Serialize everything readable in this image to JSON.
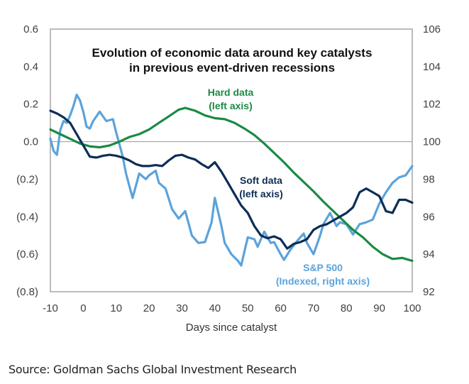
{
  "chart_data": {
    "type": "line",
    "title": "Evolution of economic data around key catalysts in previous event-driven recessions",
    "title_lines": [
      "Evolution of economic data around key catalysts",
      "in previous event-driven recessions"
    ],
    "xlabel": "Days since catalyst",
    "ylabel_left": "",
    "ylabel_right": "",
    "xlim": [
      -10,
      100
    ],
    "ylim_left": [
      -0.8,
      0.6
    ],
    "ylim_right": [
      92,
      106
    ],
    "x_ticks": [
      "-10",
      "0",
      "10",
      "20",
      "30",
      "40",
      "50",
      "60",
      "70",
      "80",
      "90",
      "100"
    ],
    "x_tick_values": [
      -10,
      0,
      10,
      20,
      30,
      40,
      50,
      60,
      70,
      80,
      90,
      100
    ],
    "left_ticks": [
      "0.6",
      "0.4",
      "0.2",
      "0.0",
      "(0.2)",
      "(0.4)",
      "(0.6)",
      "(0.8)"
    ],
    "left_tick_values": [
      0.6,
      0.4,
      0.2,
      0.0,
      -0.2,
      -0.4,
      -0.6,
      -0.8
    ],
    "right_ticks": [
      "106",
      "104",
      "102",
      "100",
      "98",
      "96",
      "94",
      "92"
    ],
    "right_tick_values": [
      106,
      104,
      102,
      100,
      98,
      96,
      94,
      92
    ],
    "grid": false,
    "zero_line": true,
    "series": [
      {
        "name": "Hard data",
        "axis": "left",
        "color": "#1a8a44",
        "label_lines": [
          "Hard data",
          "(left axis)"
        ],
        "x": [
          -10,
          -7,
          -4,
          -1,
          2,
          5,
          8,
          11,
          14,
          17,
          20,
          23,
          26,
          29,
          31,
          34,
          37,
          40,
          43,
          46,
          49,
          52,
          55,
          58,
          61,
          64,
          67,
          70,
          73,
          76,
          79,
          82,
          85,
          88,
          91,
          94,
          97,
          100
        ],
        "values": [
          0.065,
          0.04,
          0.015,
          -0.01,
          -0.025,
          -0.03,
          -0.02,
          0.0,
          0.025,
          0.04,
          0.065,
          0.1,
          0.135,
          0.17,
          0.18,
          0.165,
          0.14,
          0.125,
          0.12,
          0.1,
          0.07,
          0.035,
          -0.01,
          -0.06,
          -0.11,
          -0.165,
          -0.215,
          -0.265,
          -0.32,
          -0.37,
          -0.42,
          -0.47,
          -0.51,
          -0.56,
          -0.6,
          -0.625,
          -0.62,
          -0.635
        ]
      },
      {
        "name": "Soft data",
        "axis": "left",
        "color": "#0d2d55",
        "label_lines": [
          "Soft data",
          "(left axis)"
        ],
        "x": [
          -10,
          -8,
          -6,
          -4,
          -2,
          0,
          2,
          4,
          6,
          8,
          10,
          12,
          14,
          16,
          18,
          20,
          22,
          24,
          26,
          28,
          30,
          32,
          34,
          36,
          38,
          40,
          42,
          44,
          46,
          48,
          50,
          52,
          54,
          56,
          58,
          60,
          62,
          64,
          66,
          68,
          70,
          72,
          74,
          76,
          78,
          80,
          82,
          84,
          86,
          88,
          90,
          92,
          94,
          96,
          98,
          100
        ],
        "values": [
          0.165,
          0.15,
          0.13,
          0.1,
          0.04,
          -0.02,
          -0.08,
          -0.085,
          -0.075,
          -0.07,
          -0.075,
          -0.085,
          -0.1,
          -0.12,
          -0.13,
          -0.13,
          -0.125,
          -0.13,
          -0.1,
          -0.075,
          -0.07,
          -0.085,
          -0.095,
          -0.12,
          -0.14,
          -0.11,
          -0.16,
          -0.22,
          -0.28,
          -0.34,
          -0.38,
          -0.45,
          -0.5,
          -0.515,
          -0.505,
          -0.52,
          -0.57,
          -0.545,
          -0.535,
          -0.52,
          -0.47,
          -0.45,
          -0.44,
          -0.42,
          -0.4,
          -0.38,
          -0.35,
          -0.27,
          -0.25,
          -0.27,
          -0.29,
          -0.37,
          -0.38,
          -0.31,
          -0.31,
          -0.325
        ]
      },
      {
        "name": "S&P 500",
        "axis": "right",
        "color": "#5ba3dc",
        "label_lines": [
          "S&P 500",
          "(Indexed, right axis)"
        ],
        "x": [
          -10,
          -9,
          -8,
          -7,
          -6,
          -5,
          -4,
          -3,
          -2,
          -1,
          0,
          1,
          2,
          3,
          5,
          7,
          9,
          10,
          12,
          13,
          15,
          17,
          19,
          20,
          22,
          23,
          25,
          27,
          29,
          31,
          33,
          35,
          37,
          39,
          40,
          42,
          43,
          45,
          47,
          48,
          50,
          52,
          53,
          55,
          57,
          58,
          60,
          61,
          63,
          65,
          67,
          68,
          70,
          72,
          73,
          75,
          77,
          78,
          80,
          82,
          84,
          86,
          88,
          90,
          92,
          94,
          96,
          98,
          100
        ],
        "values": [
          100.15,
          99.5,
          99.3,
          100.6,
          101.1,
          101.0,
          101.4,
          101.9,
          102.5,
          102.2,
          101.6,
          100.8,
          100.7,
          101.1,
          101.6,
          101.1,
          101.2,
          100.5,
          99.2,
          98.3,
          97.0,
          98.3,
          98.0,
          98.2,
          98.45,
          97.8,
          97.5,
          96.4,
          95.9,
          96.3,
          95.0,
          94.6,
          94.65,
          95.7,
          97.0,
          95.5,
          94.6,
          94.0,
          93.65,
          93.4,
          94.9,
          94.8,
          94.4,
          95.2,
          94.6,
          94.65,
          94.0,
          93.7,
          94.25,
          94.7,
          95.1,
          94.6,
          94.0,
          95.0,
          95.6,
          96.2,
          95.5,
          95.7,
          95.6,
          95.05,
          95.6,
          95.7,
          95.85,
          96.7,
          97.3,
          97.8,
          98.1,
          98.2,
          98.7
        ]
      }
    ]
  },
  "footer": {
    "source": "Source: Goldman Sachs Global Investment Research"
  }
}
